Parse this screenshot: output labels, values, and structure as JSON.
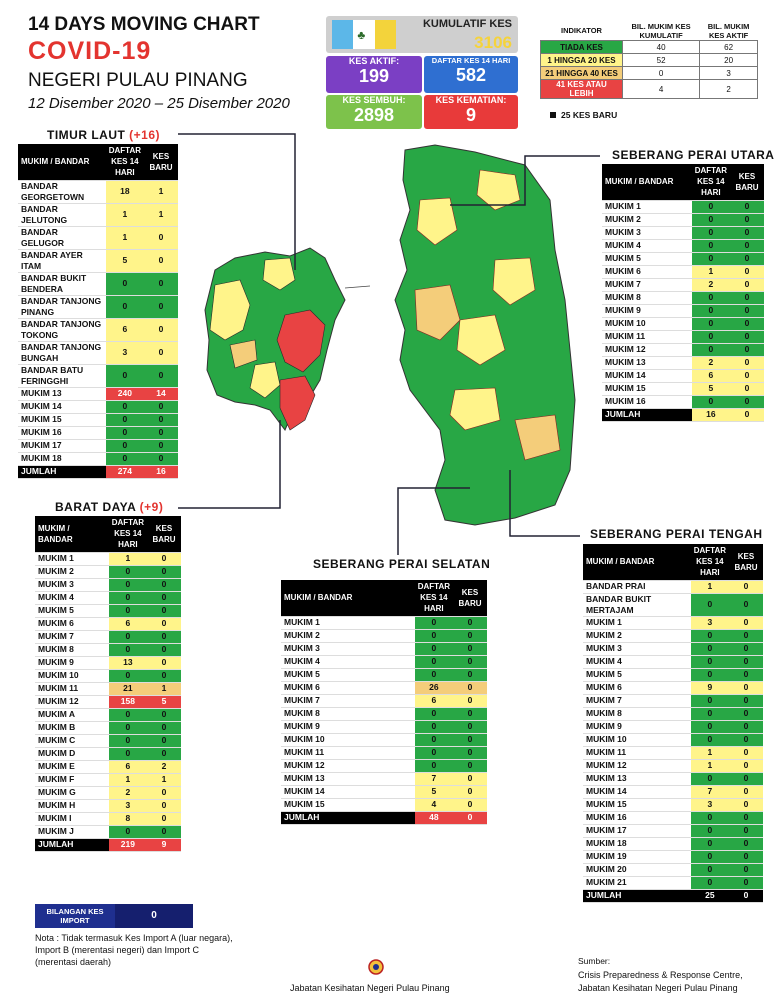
{
  "header": {
    "line1": "14  DAYS MOVING CHART",
    "line2": "COVID-19",
    "line3": "NEGERI PULAU PINANG",
    "line4": "12 Disember 2020 – 25 Disember 2020"
  },
  "stats": {
    "kumulatif_label": "KUMULATIF KES",
    "kumulatif_value": "3106",
    "aktif_label": "KES AKTIF:",
    "aktif_value": "199",
    "daftar_label": "DAFTAR KES 14 HARI",
    "daftar_value": "582",
    "sembuh_label": "KES SEMBUH:",
    "sembuh_value": "2898",
    "kematian_label": "KES KEMATIAN:",
    "kematian_value": "9"
  },
  "indicator": {
    "h1": "INDIKATOR",
    "h2": "BIL. MUKIM KES KUMULATIF",
    "h3": "BIL. MUKIM KES AKTIF",
    "rows": [
      {
        "label": "TIADA KES",
        "a": "40",
        "b": "62",
        "cls": "g"
      },
      {
        "label": "1 HINGGA 20 KES",
        "a": "52",
        "b": "20",
        "cls": "y"
      },
      {
        "label": "21 HINGGA 40 KES",
        "a": "0",
        "b": "3",
        "cls": "o"
      },
      {
        "label": "41 KES ATAU LEBIH",
        "a": "4",
        "b": "2",
        "cls": "r"
      }
    ],
    "baru_note": "25 KES BARU"
  },
  "colors": {
    "green": "#28a745",
    "yellow": "#fff48a",
    "orange": "#f4cd7a",
    "red": "#e84343",
    "kumulatif": "#cfcfcf",
    "aktif": "#7b3fc4",
    "daftar": "#2f6fd1",
    "sembuh": "#7dc24b",
    "kematian": "#e83a3a"
  },
  "chart_data": [
    {
      "type": "table",
      "title": "TIMUR LAUT",
      "increase": "(+16)",
      "columns": [
        "MUKIM / BANDAR",
        "DAFTAR KES 14 HARI",
        "KES BARU"
      ],
      "rows": [
        [
          "BANDAR GEORGETOWN",
          "18",
          "1"
        ],
        [
          "BANDAR JELUTONG",
          "1",
          "1"
        ],
        [
          "BANDAR GELUGOR",
          "1",
          "0"
        ],
        [
          "BANDAR AYER ITAM",
          "5",
          "0"
        ],
        [
          "BANDAR BUKIT BENDERA",
          "0",
          "0"
        ],
        [
          "BANDAR TANJONG PINANG",
          "0",
          "0"
        ],
        [
          "BANDAR TANJONG TOKONG",
          "6",
          "0"
        ],
        [
          "BANDAR TANJONG BUNGAH",
          "3",
          "0"
        ],
        [
          "BANDAR BATU FERINGGHI",
          "0",
          "0"
        ],
        [
          "MUKIM 13",
          "240",
          "14"
        ],
        [
          "MUKIM 14",
          "0",
          "0"
        ],
        [
          "MUKIM 15",
          "0",
          "0"
        ],
        [
          "MUKIM 16",
          "0",
          "0"
        ],
        [
          "MUKIM 17",
          "0",
          "0"
        ],
        [
          "MUKIM 18",
          "0",
          "0"
        ]
      ],
      "total": [
        "JUMLAH",
        "274",
        "16"
      ]
    },
    {
      "type": "table",
      "title": "BARAT DAYA",
      "increase": "(+9)",
      "columns": [
        "MUKIM / BANDAR",
        "DAFTAR KES 14 HARI",
        "KES BARU"
      ],
      "rows": [
        [
          "MUKIM 1",
          "1",
          "0"
        ],
        [
          "MUKIM 2",
          "0",
          "0"
        ],
        [
          "MUKIM 3",
          "0",
          "0"
        ],
        [
          "MUKIM 4",
          "0",
          "0"
        ],
        [
          "MUKIM 5",
          "0",
          "0"
        ],
        [
          "MUKIM 6",
          "6",
          "0"
        ],
        [
          "MUKIM 7",
          "0",
          "0"
        ],
        [
          "MUKIM 8",
          "0",
          "0"
        ],
        [
          "MUKIM 9",
          "13",
          "0"
        ],
        [
          "MUKIM 10",
          "0",
          "0"
        ],
        [
          "MUKIM 11",
          "21",
          "1"
        ],
        [
          "MUKIM 12",
          "158",
          "5"
        ],
        [
          "MUKIM A",
          "0",
          "0"
        ],
        [
          "MUKIM B",
          "0",
          "0"
        ],
        [
          "MUKIM C",
          "0",
          "0"
        ],
        [
          "MUKIM D",
          "0",
          "0"
        ],
        [
          "MUKIM E",
          "6",
          "2"
        ],
        [
          "MUKIM F",
          "1",
          "1"
        ],
        [
          "MUKIM G",
          "2",
          "0"
        ],
        [
          "MUKIM H",
          "3",
          "0"
        ],
        [
          "MUKIM I",
          "8",
          "0"
        ],
        [
          "MUKIM J",
          "0",
          "0"
        ]
      ],
      "total": [
        "JUMLAH",
        "219",
        "9"
      ]
    },
    {
      "type": "table",
      "title": "SEBERANG PERAI UTARA",
      "columns": [
        "MUKIM / BANDAR",
        "DAFTAR KES 14 HARI",
        "KES BARU"
      ],
      "rows": [
        [
          "MUKIM 1",
          "0",
          "0"
        ],
        [
          "MUKIM 2",
          "0",
          "0"
        ],
        [
          "MUKIM 3",
          "0",
          "0"
        ],
        [
          "MUKIM 4",
          "0",
          "0"
        ],
        [
          "MUKIM 5",
          "0",
          "0"
        ],
        [
          "MUKIM 6",
          "1",
          "0"
        ],
        [
          "MUKIM 7",
          "2",
          "0"
        ],
        [
          "MUKIM 8",
          "0",
          "0"
        ],
        [
          "MUKIM 9",
          "0",
          "0"
        ],
        [
          "MUKIM 10",
          "0",
          "0"
        ],
        [
          "MUKIM 11",
          "0",
          "0"
        ],
        [
          "MUKIM 12",
          "0",
          "0"
        ],
        [
          "MUKIM 13",
          "2",
          "0"
        ],
        [
          "MUKIM 14",
          "6",
          "0"
        ],
        [
          "MUKIM 15",
          "5",
          "0"
        ],
        [
          "MUKIM 16",
          "0",
          "0"
        ]
      ],
      "total": [
        "JUMLAH",
        "16",
        "0"
      ]
    },
    {
      "type": "table",
      "title": "SEBERANG PERAI SELATAN",
      "columns": [
        "MUKIM / BANDAR",
        "DAFTAR KES 14 HARI",
        "KES BARU"
      ],
      "rows": [
        [
          "MUKIM 1",
          "0",
          "0"
        ],
        [
          "MUKIM 2",
          "0",
          "0"
        ],
        [
          "MUKIM 3",
          "0",
          "0"
        ],
        [
          "MUKIM 4",
          "0",
          "0"
        ],
        [
          "MUKIM 5",
          "0",
          "0"
        ],
        [
          "MUKIM 6",
          "26",
          "0"
        ],
        [
          "MUKIM 7",
          "6",
          "0"
        ],
        [
          "MUKIM 8",
          "0",
          "0"
        ],
        [
          "MUKIM 9",
          "0",
          "0"
        ],
        [
          "MUKIM 10",
          "0",
          "0"
        ],
        [
          "MUKIM 11",
          "0",
          "0"
        ],
        [
          "MUKIM 12",
          "0",
          "0"
        ],
        [
          "MUKIM 13",
          "7",
          "0"
        ],
        [
          "MUKIM 14",
          "5",
          "0"
        ],
        [
          "MUKIM 15",
          "4",
          "0"
        ]
      ],
      "total": [
        "JUMLAH",
        "48",
        "0"
      ]
    },
    {
      "type": "table",
      "title": "SEBERANG PERAI TENGAH",
      "columns": [
        "MUKIM / BANDAR",
        "DAFTAR KES 14 HARI",
        "KES BARU"
      ],
      "rows": [
        [
          "BANDAR PRAI",
          "1",
          "0"
        ],
        [
          "BANDAR BUKIT MERTAJAM",
          "0",
          "0"
        ],
        [
          "MUKIM 1",
          "3",
          "0"
        ],
        [
          "MUKIM 2",
          "0",
          "0"
        ],
        [
          "MUKIM 3",
          "0",
          "0"
        ],
        [
          "MUKIM 4",
          "0",
          "0"
        ],
        [
          "MUKIM 5",
          "0",
          "0"
        ],
        [
          "MUKIM 6",
          "9",
          "0"
        ],
        [
          "MUKIM 7",
          "0",
          "0"
        ],
        [
          "MUKIM 8",
          "0",
          "0"
        ],
        [
          "MUKIM 9",
          "0",
          "0"
        ],
        [
          "MUKIM 10",
          "0",
          "0"
        ],
        [
          "MUKIM 11",
          "1",
          "0"
        ],
        [
          "MUKIM 12",
          "1",
          "0"
        ],
        [
          "MUKIM 13",
          "0",
          "0"
        ],
        [
          "MUKIM 14",
          "7",
          "0"
        ],
        [
          "MUKIM 15",
          "3",
          "0"
        ],
        [
          "MUKIM 16",
          "0",
          "0"
        ],
        [
          "MUKIM 17",
          "0",
          "0"
        ],
        [
          "MUKIM 18",
          "0",
          "0"
        ],
        [
          "MUKIM 19",
          "0",
          "0"
        ],
        [
          "MUKIM 20",
          "0",
          "0"
        ],
        [
          "MUKIM 21",
          "0",
          "0"
        ]
      ],
      "total": [
        "JUMLAH",
        "25",
        "0"
      ]
    }
  ],
  "import": {
    "label": "BILANGAN KES IMPORT",
    "value": "0",
    "note": "Nota : Tidak termasuk Kes Import A (luar negara), Import B (merentasi negeri) dan Import C (merentasi daerah)"
  },
  "footer": {
    "agency": "Jabatan Kesihatan Negeri Pulau Pinang",
    "source_label": "Sumber:",
    "source_line1": "Crisis Preparedness & Response Centre,",
    "source_line2": "Jabatan Kesihatan Negeri Pulau Pinang"
  }
}
